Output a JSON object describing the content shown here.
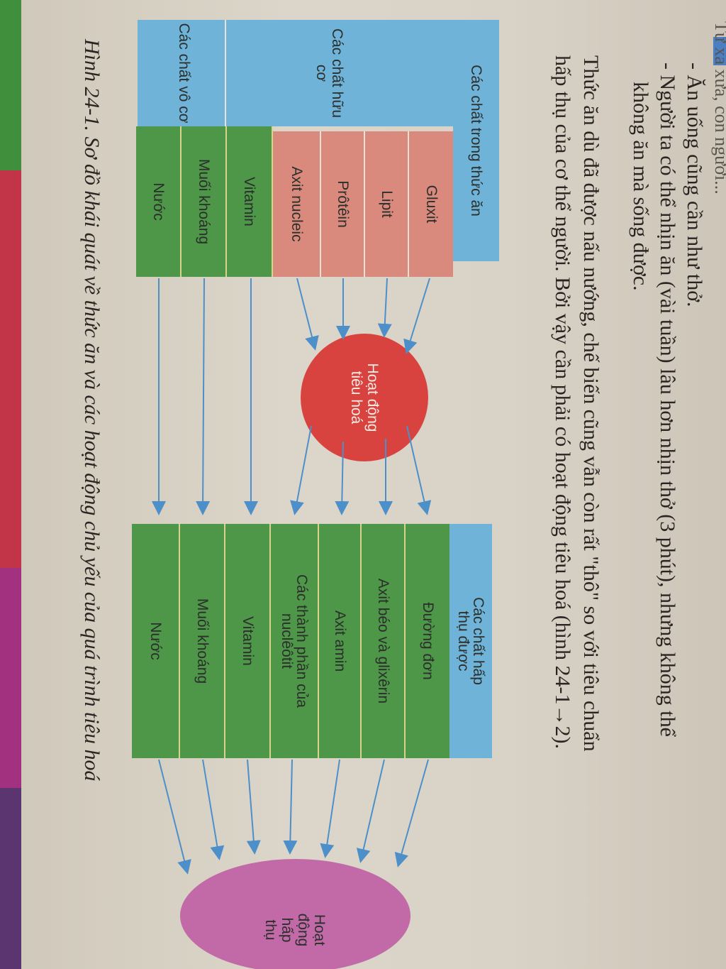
{
  "text": {
    "header_partial": "Từ xa xưa, con người...",
    "line1": "- Ăn uống cũng cần như thở.",
    "line2a": "- Người ta có thể nhịn ăn (vài tuần) lâu hơn nhịn thở (3 phút), nhưng không thể",
    "line2b": "không ăn mà sống được.",
    "para1": "Thức ăn dù đã được nấu nướng, chế biến cũng vẫn còn rất \"thô\" so với tiêu chuẩn",
    "para2": "hấp thụ của cơ thể người. Bởi vậy cần phải có hoạt động tiêu hoá (hình 24-1→2).",
    "caption": "Hình 24-1. Sơ đồ khái quát về thức ăn và các hoạt động chủ yếu của quá trình tiêu hoá"
  },
  "diagram": {
    "food_header": "Các chất trong thức ăn",
    "organic_label": "Các chất hữu cơ",
    "inorganic_label": "Các chất vô cơ",
    "food_items": [
      "Gluxit",
      "Lipit",
      "Prôtêin",
      "Axit nucleic",
      "Vitamin",
      "Muối khoáng",
      "Nước"
    ],
    "digestion_label": "Hoạt động tiêu hoá",
    "absorbed_header": "Các chất hấp thụ được",
    "absorbed_items": [
      "Đường đơn",
      "Axit béo và glixêrin",
      "Axit amin",
      "Các thành phần của nuclêôtit",
      "Vitamin",
      "Muối khoáng",
      "Nước"
    ],
    "absorption_label": "Hoạt động hấp thụ"
  },
  "colors": {
    "blue": "#6fb3d8",
    "salmon": "#d98a7c",
    "green": "#4e9648",
    "red_circle": "#d8433f",
    "pink_ellipse": "#c26aa8",
    "arrow": "#4d8fc9"
  }
}
